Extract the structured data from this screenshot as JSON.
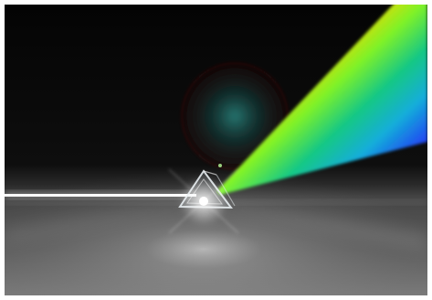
{
  "scene": {
    "subject": "prism-dispersion",
    "colors": {
      "background_top": "#050505",
      "background_mid": "#101010",
      "floor_far": "#3a3a3a",
      "floor_near": "#7a7a7a",
      "beam": "#ffffff",
      "lens_flare": "#1f6b66",
      "lens_flare_ring": "#6a1f1f"
    },
    "spectrum": [
      "#7a0a0a",
      "#e02020",
      "#ff7a00",
      "#ffe600",
      "#7cff2a",
      "#19d38a",
      "#12b4e0",
      "#2048ff",
      "#2a1380"
    ]
  }
}
